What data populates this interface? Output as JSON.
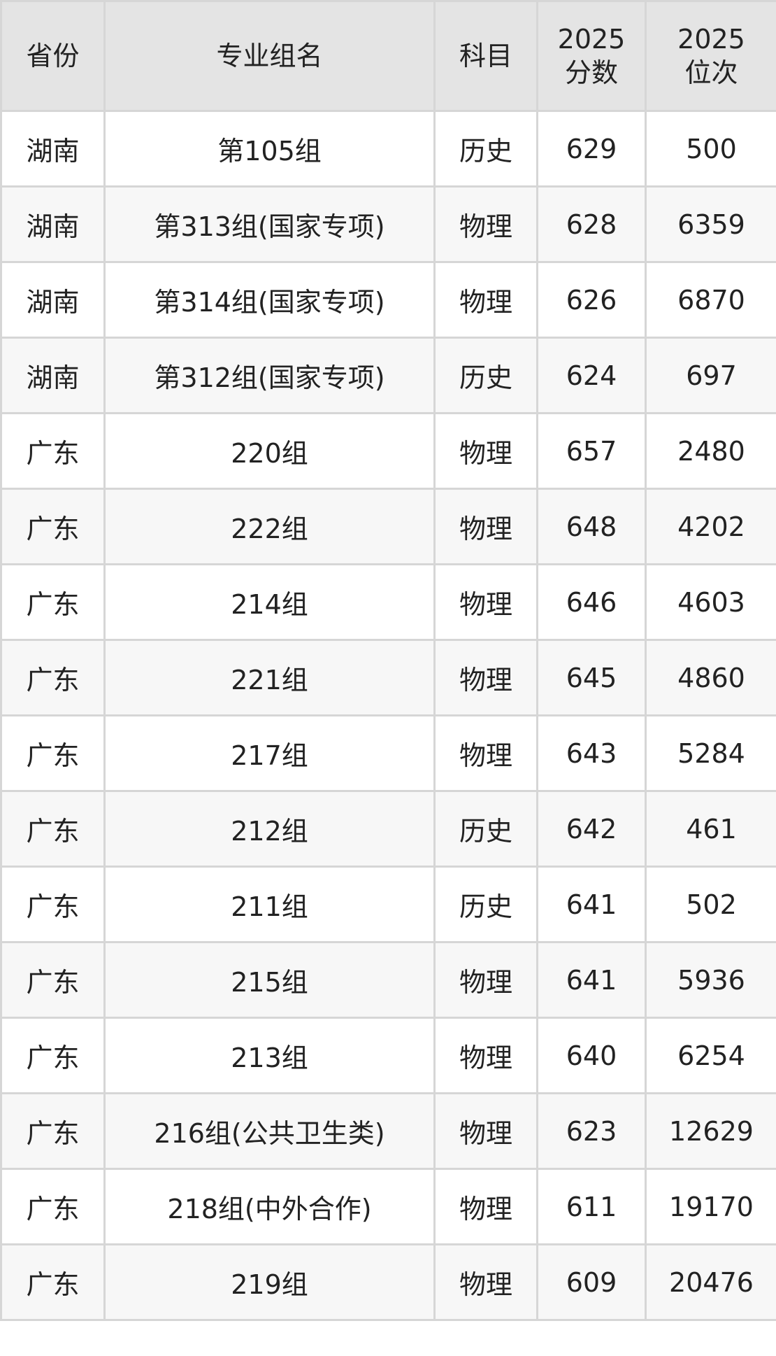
{
  "table": {
    "headers": [
      "省份",
      "专业组名",
      "科目",
      "2025\n分数",
      "2025\n位次"
    ],
    "rows": [
      [
        "湖南",
        "第105组",
        "历史",
        "629",
        "500"
      ],
      [
        "湖南",
        "第313组(国家专项)",
        "物理",
        "628",
        "6359"
      ],
      [
        "湖南",
        "第314组(国家专项)",
        "物理",
        "626",
        "6870"
      ],
      [
        "湖南",
        "第312组(国家专项)",
        "历史",
        "624",
        "697"
      ],
      [
        "广东",
        "220组",
        "物理",
        "657",
        "2480"
      ],
      [
        "广东",
        "222组",
        "物理",
        "648",
        "4202"
      ],
      [
        "广东",
        "214组",
        "物理",
        "646",
        "4603"
      ],
      [
        "广东",
        "221组",
        "物理",
        "645",
        "4860"
      ],
      [
        "广东",
        "217组",
        "物理",
        "643",
        "5284"
      ],
      [
        "广东",
        "212组",
        "历史",
        "642",
        "461"
      ],
      [
        "广东",
        "211组",
        "历史",
        "641",
        "502"
      ],
      [
        "广东",
        "215组",
        "物理",
        "641",
        "5936"
      ],
      [
        "广东",
        "213组",
        "物理",
        "640",
        "6254"
      ],
      [
        "广东",
        "216组(公共卫生类)",
        "物理",
        "623",
        "12629"
      ],
      [
        "广东",
        "218组(中外合作)",
        "物理",
        "611",
        "19170"
      ],
      [
        "广东",
        "219组",
        "物理",
        "609",
        "20476"
      ]
    ]
  }
}
